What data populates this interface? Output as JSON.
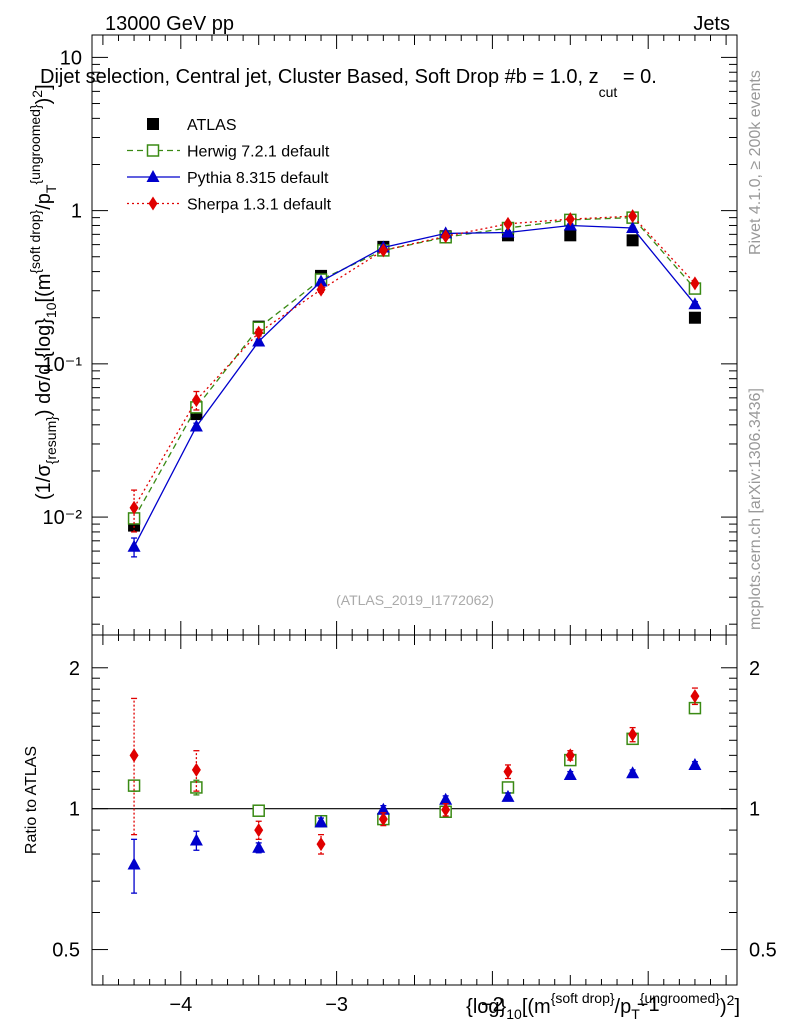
{
  "header": {
    "energy": "13000 GeV pp",
    "process": "Jets",
    "selection_title": "Dijet selection, Central jet, Cluster Based, Soft Drop #b = 1.0, z",
    "selection_title_sub": "cut",
    "selection_title_end": " = 0.",
    "watermark": "(ATLAS_2019_I1772062)",
    "side_label_top": "Rivet 4.1.0, ≥ 200k events",
    "side_label_bottom": "mcplots.cern.ch [arXiv:1306.3436]"
  },
  "colors": {
    "atlas": "#000000",
    "herwig": "#3a8a14",
    "pythia": "#0000cc",
    "sherpa": "#e00000"
  },
  "chart_data": [
    {
      "type": "line",
      "panel": "main",
      "ylabel": "(1/σ_{resum}) dσ/d {log}_{10}[(m^{soft drop}/p_T^{ungroomed})^2]",
      "yscale": "log",
      "ylim": [
        0.0017,
        14
      ],
      "xlim": [
        -4.57,
        -0.43
      ],
      "y_tick_labels": [
        "10⁻²",
        "10⁻¹",
        "1",
        "10"
      ],
      "legend_position": "top-left",
      "x": [
        -4.3,
        -3.9,
        -3.5,
        -3.1,
        -2.7,
        -2.3,
        -1.9,
        -1.5,
        -1.1,
        -0.7
      ],
      "series": [
        {
          "name": "ATLAS",
          "marker": "filled-square",
          "values": [
            0.0088,
            0.047,
            0.175,
            0.375,
            0.58,
            0.68,
            0.69,
            0.69,
            0.64,
            0.2
          ]
        },
        {
          "name": "Herwig 7.2.1 default",
          "marker": "open-square",
          "line": "dashed",
          "values": [
            0.0098,
            0.052,
            0.172,
            0.355,
            0.55,
            0.67,
            0.77,
            0.87,
            0.9,
            0.31
          ]
        },
        {
          "name": "Pythia 8.315 default",
          "marker": "triangle",
          "line": "solid",
          "values": [
            0.0064,
            0.039,
            0.14,
            0.345,
            0.575,
            0.71,
            0.72,
            0.8,
            0.77,
            0.245
          ],
          "err": [
            0.0009,
            0.002,
            0.005,
            0.01,
            0.015,
            0.02,
            0.02,
            0.02,
            0.02,
            0.01
          ]
        },
        {
          "name": "Sherpa 1.3.1 default",
          "marker": "diamond",
          "line": "dotted",
          "values": [
            0.0115,
            0.058,
            0.16,
            0.305,
            0.55,
            0.68,
            0.82,
            0.88,
            0.92,
            0.335
          ],
          "err": [
            0.0035,
            0.008,
            0.008,
            0.012,
            0.015,
            0.02,
            0.02,
            0.02,
            0.02,
            0.01
          ]
        }
      ]
    },
    {
      "type": "line",
      "panel": "ratio",
      "ylabel": "Ratio to ATLAS",
      "xlabel": "{log}_{10}[(m^{soft drop}/p_T^{ungroomed})^2]",
      "yscale": "log",
      "ylim": [
        0.42,
        2.35
      ],
      "xlim": [
        -4.57,
        -0.43
      ],
      "reference_line": 1,
      "y_tick_labels": [
        "0.5",
        "1",
        "2"
      ],
      "x_tick_labels": [
        "−4",
        "−3",
        "−2",
        "−1"
      ],
      "x": [
        -4.3,
        -3.9,
        -3.5,
        -3.1,
        -2.7,
        -2.3,
        -1.9,
        -1.5,
        -1.1,
        -0.7
      ],
      "series": [
        {
          "name": "Herwig 7.2.1 default",
          "values": [
            1.12,
            1.11,
            0.99,
            0.94,
            0.95,
            0.985,
            1.11,
            1.27,
            1.41,
            1.64
          ],
          "err": [
            0.03,
            0.04,
            0.02,
            0.02,
            0.02,
            0.02,
            0.02,
            0.02,
            0.03,
            0.04
          ]
        },
        {
          "name": "Pythia 8.315 default",
          "values": [
            0.76,
            0.855,
            0.825,
            0.935,
            0.995,
            1.045,
            1.06,
            1.18,
            1.19,
            1.24
          ],
          "err": [
            0.1,
            0.04,
            0.02,
            0.02,
            0.02,
            0.02,
            0.02,
            0.02,
            0.02,
            0.02
          ]
        },
        {
          "name": "Sherpa 1.3.1 default",
          "values": [
            1.3,
            1.21,
            0.9,
            0.84,
            0.95,
            0.995,
            1.2,
            1.3,
            1.44,
            1.74
          ],
          "err": [
            0.42,
            0.12,
            0.04,
            0.04,
            0.03,
            0.03,
            0.04,
            0.03,
            0.05,
            0.07
          ]
        }
      ]
    }
  ]
}
